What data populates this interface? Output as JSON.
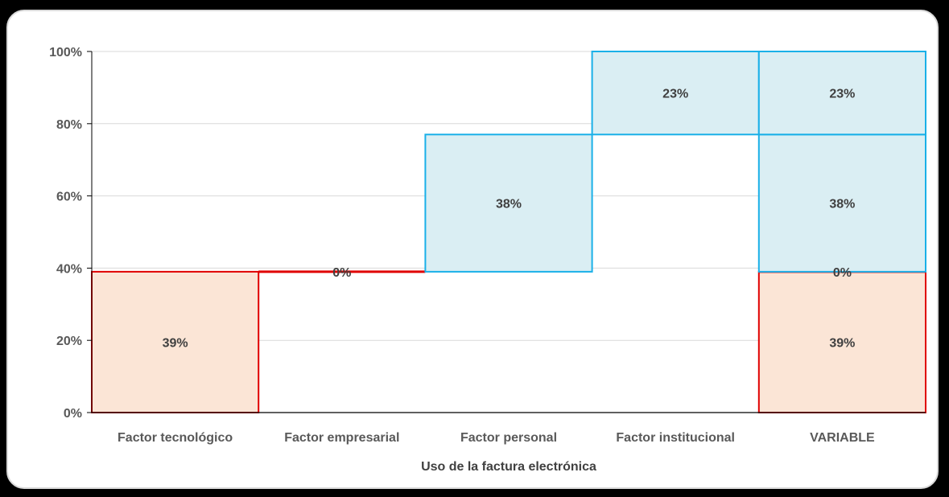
{
  "chart_data": {
    "type": "bar",
    "subtype": "waterfall",
    "title": "",
    "xlabel": "Uso de la factura electrónica",
    "ylabel": "",
    "ylim": [
      0,
      1
    ],
    "yticks": [
      "0%",
      "20%",
      "40%",
      "60%",
      "80%",
      "100%"
    ],
    "grid": true,
    "legend": "none",
    "categories": [
      "Factor tecnológico",
      "Factor empresarial",
      "Factor personal",
      "Factor institucional",
      "VARIABLE"
    ],
    "segments": [
      {
        "category": "Factor tecnológico",
        "base": 0.0,
        "value": 0.39,
        "label": "39%",
        "color": "#fbe5d6",
        "edge": "#e00000"
      },
      {
        "category": "Factor empresarial",
        "base": 0.39,
        "value": 0.0,
        "label": "0%",
        "color": "#fbe5d6",
        "edge": "#e00000"
      },
      {
        "category": "Factor personal",
        "base": 0.39,
        "value": 0.38,
        "label": "38%",
        "color": "#daeef3",
        "edge": "#1ab0e8"
      },
      {
        "category": "Factor institucional",
        "base": 0.77,
        "value": 0.23,
        "label": "23%",
        "color": "#daeef3",
        "edge": "#1ab0e8"
      },
      {
        "category": "VARIABLE",
        "base": 0.0,
        "value": 0.39,
        "label": "39%",
        "color": "#fbe5d6",
        "edge": "#e00000"
      },
      {
        "category": "VARIABLE",
        "base": 0.39,
        "value": 0.0,
        "label": "0%",
        "color": "#fbe5d6",
        "edge": "#e00000"
      },
      {
        "category": "VARIABLE",
        "base": 0.39,
        "value": 0.38,
        "label": "38%",
        "color": "#daeef3",
        "edge": "#1ab0e8"
      },
      {
        "category": "VARIABLE",
        "base": 0.77,
        "value": 0.23,
        "label": "23%",
        "color": "#daeef3",
        "edge": "#1ab0e8"
      }
    ],
    "colors": {
      "grid": "#d9d9d9",
      "axis": "#000000",
      "red_fill": "#fbe5d6",
      "red_edge": "#e00000",
      "blue_fill": "#daeef3",
      "blue_edge": "#1ab0e8"
    }
  }
}
